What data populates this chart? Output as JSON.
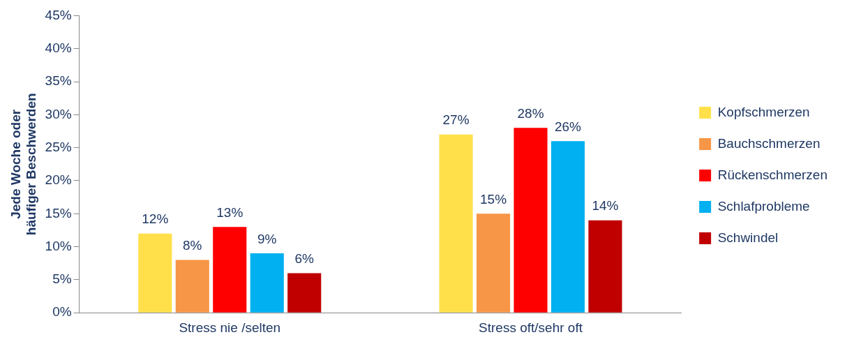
{
  "chart_data": {
    "type": "bar",
    "ylabel": "Jede Woche oder häufiger Beschwerden",
    "categories": [
      "Stress nie /selten",
      "Stress oft/sehr oft"
    ],
    "series": [
      {
        "name": "Kopfschmerzen",
        "color": "#ffe04b",
        "values": [
          12,
          27
        ],
        "value_labels": [
          "12%",
          "27%"
        ]
      },
      {
        "name": "Bauchschmerzen",
        "color": "#f79646",
        "values": [
          8,
          15
        ],
        "value_labels": [
          "8%",
          "15%"
        ]
      },
      {
        "name": "Rückenschmerzen",
        "color": "#ff0000",
        "values": [
          13,
          28
        ],
        "value_labels": [
          "13%",
          "28%"
        ]
      },
      {
        "name": "Schlafprobleme",
        "color": "#00b0f0",
        "values": [
          9,
          26
        ],
        "value_labels": [
          "9%",
          "26%"
        ]
      },
      {
        "name": "Schwindel",
        "color": "#c00000",
        "values": [
          6,
          14
        ],
        "value_labels": [
          "6%",
          "14%"
        ]
      }
    ],
    "ylim": [
      0,
      45
    ],
    "yticks": [
      {
        "value": 0,
        "label": "0%"
      },
      {
        "value": 5,
        "label": "5%"
      },
      {
        "value": 10,
        "label": "10%"
      },
      {
        "value": 15,
        "label": "15%"
      },
      {
        "value": 20,
        "label": "20%"
      },
      {
        "value": 25,
        "label": "25%"
      },
      {
        "value": 30,
        "label": "30%"
      },
      {
        "value": 35,
        "label": "35%"
      },
      {
        "value": 40,
        "label": "40%"
      },
      {
        "value": 45,
        "label": "45%"
      }
    ],
    "grid": false,
    "legend": "right"
  }
}
